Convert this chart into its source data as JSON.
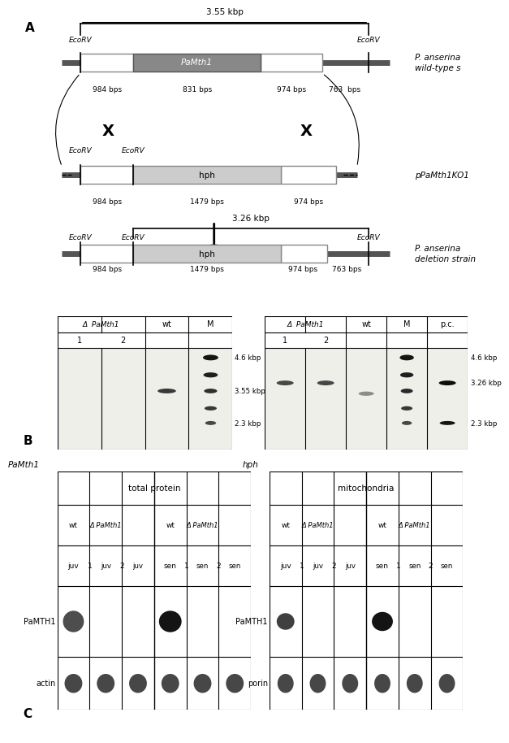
{
  "bg_color": "#ffffff",
  "section_A": {
    "wt_label": "P. anserina\nwild-type s",
    "wt_bps": [
      "984 bps",
      "831 bps",
      "974 bps",
      "763  bps"
    ],
    "wt_size": "3.55 kbp",
    "wt_ecoRV": [
      "EcoRV",
      "EcoRV"
    ],
    "wt_gene": "PaMth1",
    "ko_label": "pPaMth1KO1",
    "ko_bps": [
      "984 bps",
      "1479 bps",
      "974 bps"
    ],
    "ko_ecoRV": [
      "EcoRV",
      "EcoRV"
    ],
    "ko_gene": "hph",
    "del_label": "P. anserina\ndeletion strain",
    "del_bps": [
      "984 bps",
      "1479 bps",
      "974 bps",
      "763 bps"
    ],
    "del_size": "3.26 kbp",
    "del_ecoRV": [
      "EcoRV",
      "EcoRV",
      "EcoRV"
    ],
    "del_gene": "hph"
  },
  "section_B": {
    "left_title": "PaMth1",
    "left_cols": [
      "Δ PaMth1",
      "wt",
      "M"
    ],
    "left_subcols": [
      "1",
      "2"
    ],
    "left_markers": [
      "4.6 kbp",
      "3.55 kbp",
      "2.3 kbp"
    ],
    "right_title": "hph",
    "right_cols": [
      "Δ PaMth1",
      "wt",
      "M",
      "p.c."
    ],
    "right_subcols": [
      "1",
      "2"
    ],
    "right_markers": [
      "4.6 kbp",
      "3.26 kbp",
      "2.3 kbp"
    ]
  },
  "section_C": {
    "left_title": "total protein",
    "left_col_groups": [
      [
        "wt",
        "juv"
      ],
      [
        "Δ PaMth1",
        "1\njuv",
        "2\njuv"
      ],
      [
        "wt",
        "sen"
      ],
      [
        "Δ PaMth1",
        "1\nsen",
        "2\nsen"
      ]
    ],
    "left_rows": [
      "PaMTH1",
      "actin"
    ],
    "right_title": "mitochondria",
    "right_col_groups": [
      [
        "wt",
        "juv"
      ],
      [
        "Δ PaMth1",
        "1\njuv",
        "2\njuv"
      ],
      [
        "wt",
        "sen"
      ],
      [
        "Δ PaMth1",
        "1\nsen",
        "2\nsen"
      ]
    ],
    "right_rows": [
      "PaMTH1",
      "porin"
    ]
  }
}
